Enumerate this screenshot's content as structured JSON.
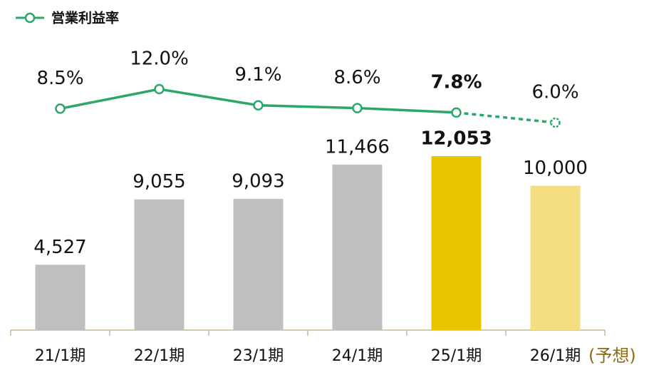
{
  "chart_data": {
    "type": "bar",
    "categories": [
      "21/1期",
      "22/1期",
      "23/1期",
      "24/1期",
      "25/1期",
      "26/1期"
    ],
    "annotation": "(予想)",
    "highlight_index": 4,
    "forecast_index": 5,
    "series": [
      {
        "type": "bar",
        "colors": [
          "#bfbfbf",
          "#bfbfbf",
          "#bfbfbf",
          "#bfbfbf",
          "#e9c300",
          "#f5de80"
        ],
        "values": [
          4527,
          9055,
          9093,
          11466,
          12053,
          10000
        ],
        "value_labels": [
          "4,527",
          "9,055",
          "9,093",
          "11,466",
          "12,053",
          "10,000"
        ]
      },
      {
        "type": "line",
        "name": "営業利益率",
        "color": "#2aa86a",
        "axis": "y2",
        "values": [
          8.5,
          12.0,
          9.1,
          8.6,
          7.8,
          6.0
        ],
        "value_labels": [
          "8.5%",
          "12.0%",
          "9.1%",
          "8.6%",
          "7.8%",
          "6.0%"
        ]
      }
    ]
  }
}
